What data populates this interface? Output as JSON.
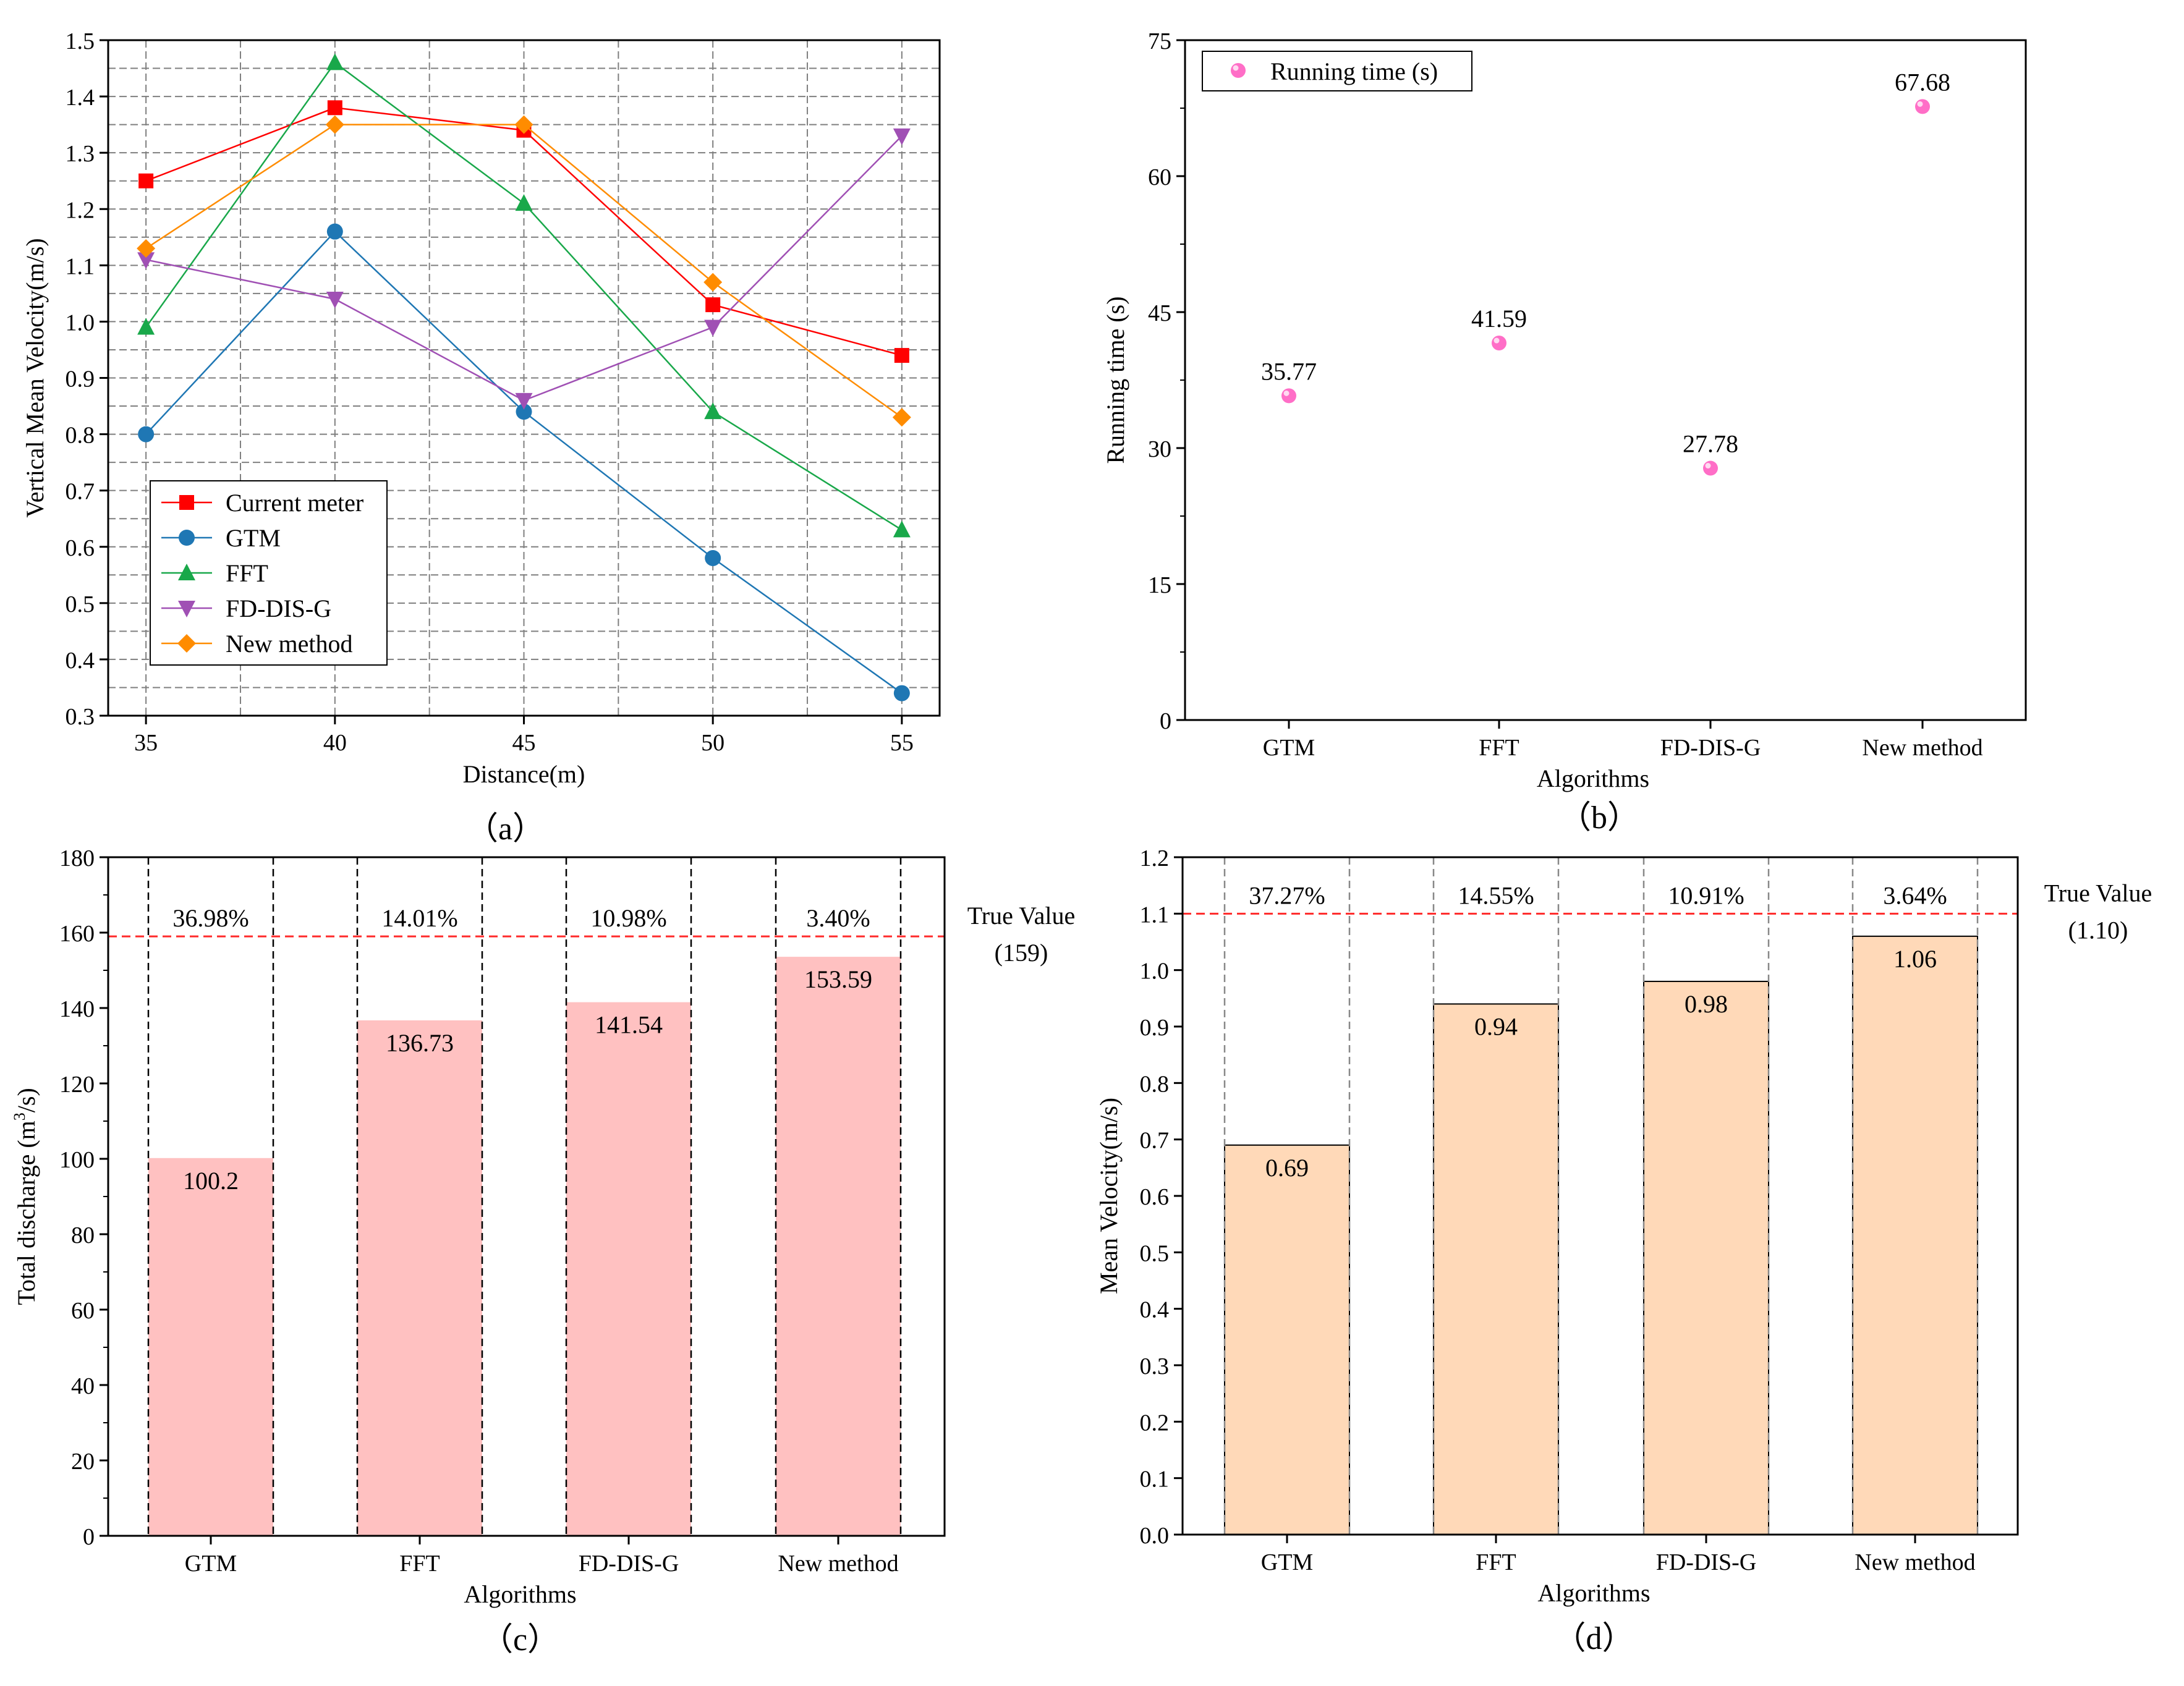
{
  "colors": {
    "current_meter": "#ff0000",
    "gtm": "#1f77b4",
    "fft": "#19a84a",
    "fd_dis_g": "#a050b4",
    "new_method": "#ff8c00",
    "running_time": "#ff6ec7",
    "bar_c": "#ffc1c1",
    "bar_d": "#ffd9b8",
    "true_line": "#ff2a2a",
    "grid": "#7f7f7f"
  },
  "chart_data": [
    {
      "id": "a",
      "type": "line",
      "panel_label": "（a）",
      "title": "",
      "xlabel": "Distance(m)",
      "ylabel": "Vertical Mean Velocity(m/s)",
      "x": [
        35,
        40,
        45,
        50,
        55
      ],
      "xlim": [
        34,
        56
      ],
      "ylim": [
        0.3,
        1.5
      ],
      "xticks": [
        "35",
        "40",
        "45",
        "50",
        "55"
      ],
      "yticks": [
        "0.3",
        "0.4",
        "0.5",
        "0.6",
        "0.7",
        "0.8",
        "0.9",
        "1.0",
        "1.1",
        "1.2",
        "1.3",
        "1.4",
        "1.5"
      ],
      "grid": true,
      "legend_position": "bottom-left",
      "series": [
        {
          "name": "Current meter",
          "color_key": "current_meter",
          "marker": "square",
          "values": [
            1.25,
            1.38,
            1.34,
            1.03,
            0.94
          ]
        },
        {
          "name": "GTM",
          "color_key": "gtm",
          "marker": "circle",
          "values": [
            0.8,
            1.16,
            0.84,
            0.58,
            0.34
          ]
        },
        {
          "name": "FFT",
          "color_key": "fft",
          "marker": "triangle-up",
          "values": [
            0.99,
            1.46,
            1.21,
            0.84,
            0.63
          ]
        },
        {
          "name": "FD-DIS-G",
          "color_key": "fd_dis_g",
          "marker": "triangle-down",
          "values": [
            1.11,
            1.04,
            0.86,
            0.99,
            1.33
          ]
        },
        {
          "name": "New method",
          "color_key": "new_method",
          "marker": "diamond",
          "values": [
            1.13,
            1.35,
            1.35,
            1.07,
            0.83
          ]
        }
      ]
    },
    {
      "id": "b",
      "type": "scatter",
      "panel_label": "（b）",
      "title": "",
      "xlabel": "Algorithms",
      "ylabel": "Running time (s)",
      "categories": [
        "GTM",
        "FFT",
        "FD-DIS-G",
        "New method"
      ],
      "values": [
        35.77,
        41.59,
        27.78,
        67.68
      ],
      "data_labels": [
        "35.77",
        "41.59",
        "27.78",
        "67.68"
      ],
      "ylim": [
        0,
        75
      ],
      "yticks": [
        "0",
        "15",
        "30",
        "45",
        "60",
        "75"
      ],
      "grid": false,
      "legend_position": "top-left",
      "legend": [
        "Running time (s)"
      ]
    },
    {
      "id": "c",
      "type": "bar",
      "panel_label": "（c）",
      "title": "",
      "xlabel": "Algorithms",
      "ylabel_main": "Total discharge (m",
      "ylabel_sup": "3",
      "ylabel_tail": "/s)",
      "categories": [
        "GTM",
        "FFT",
        "FD-DIS-G",
        "New method"
      ],
      "values": [
        100.2,
        136.73,
        141.54,
        153.59
      ],
      "data_labels": [
        "100.2",
        "136.73",
        "141.54",
        "153.59"
      ],
      "error_labels": [
        "36.98%",
        "14.01%",
        "10.98%",
        "3.40%"
      ],
      "true_value": 159,
      "true_value_label": "True Value",
      "true_value_text": "(159)",
      "ylim": [
        0,
        180
      ],
      "yticks": [
        "0",
        "20",
        "40",
        "60",
        "80",
        "100",
        "120",
        "140",
        "160",
        "180"
      ],
      "grid": false
    },
    {
      "id": "d",
      "type": "bar",
      "panel_label": "（d）",
      "title": "",
      "xlabel": "Algorithms",
      "ylabel": "Mean Velocity(m/s)",
      "categories": [
        "GTM",
        "FFT",
        "FD-DIS-G",
        "New method"
      ],
      "values": [
        0.69,
        0.94,
        0.98,
        1.06
      ],
      "data_labels": [
        "0.69",
        "0.94",
        "0.98",
        "1.06"
      ],
      "error_labels": [
        "37.27%",
        "14.55%",
        "10.91%",
        "3.64%"
      ],
      "true_value": 1.1,
      "true_value_label": "True Value",
      "true_value_text": "(1.10)",
      "ylim": [
        0,
        1.2
      ],
      "yticks": [
        "0.0",
        "0.1",
        "0.2",
        "0.3",
        "0.4",
        "0.5",
        "0.6",
        "0.7",
        "0.8",
        "0.9",
        "1.0",
        "1.1",
        "1.2"
      ],
      "grid": false
    }
  ]
}
